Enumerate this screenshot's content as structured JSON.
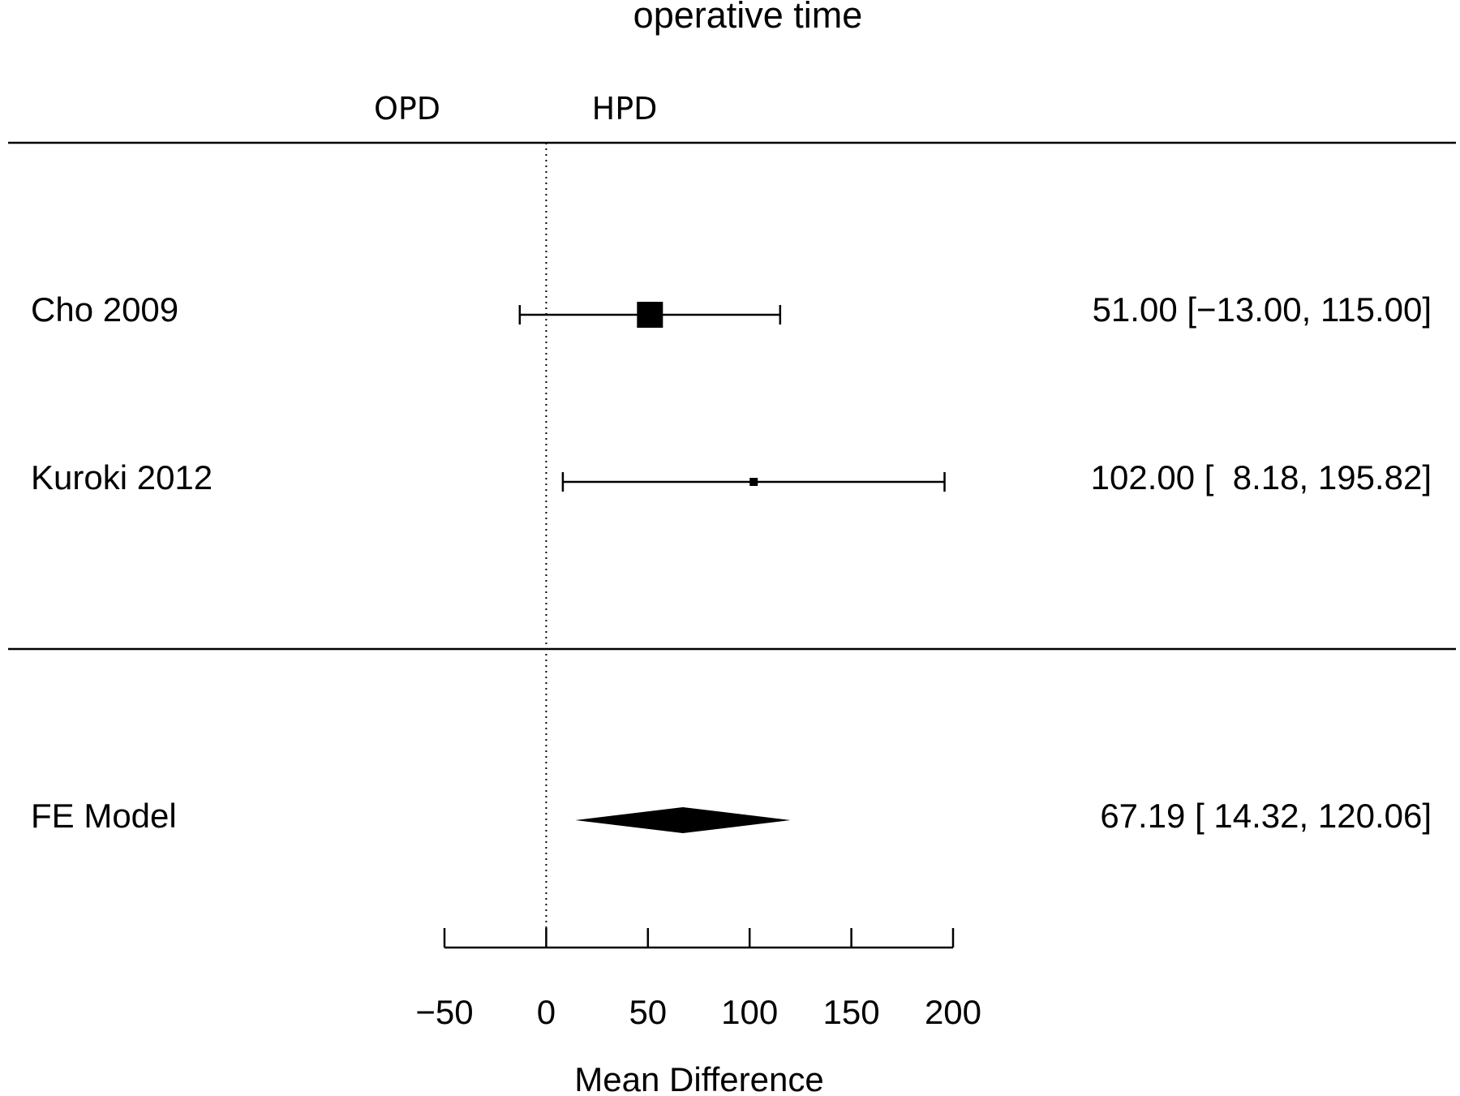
{
  "chart_data": {
    "type": "forest",
    "title": "operative time",
    "left_group_label": "OPD",
    "right_group_label": "HPD",
    "xlabel": "Mean Difference",
    "xlim": [
      -50,
      200
    ],
    "xticks": [
      -50,
      0,
      50,
      100,
      150,
      200
    ],
    "xtick_labels": [
      "−50",
      "0",
      "50",
      "100",
      "150",
      "200"
    ],
    "reference_line": 0,
    "studies": [
      {
        "label": "Cho 2009",
        "estimate": 51.0,
        "ci_lower": -13.0,
        "ci_upper": 115.0,
        "ci_text": "51.00 [−13.00, 115.00]",
        "marker_size": "large"
      },
      {
        "label": "Kuroki 2012",
        "estimate": 102.0,
        "ci_lower": 8.18,
        "ci_upper": 195.82,
        "ci_text": "102.00 [  8.18, 195.82]",
        "marker_size": "small"
      }
    ],
    "summary": {
      "label": "FE Model",
      "estimate": 67.19,
      "ci_lower": 14.32,
      "ci_upper": 120.06,
      "ci_text": "67.19 [ 14.32, 120.06]"
    }
  }
}
